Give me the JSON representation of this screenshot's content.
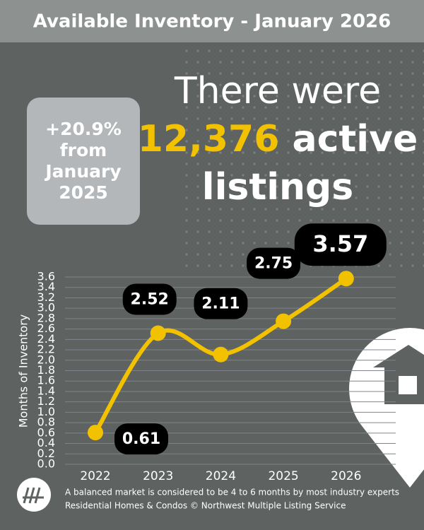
{
  "header": {
    "title": "Available Inventory - January 2026"
  },
  "badge": {
    "lines": [
      "+20.9%",
      "from",
      "January",
      "2025"
    ]
  },
  "headline": {
    "line1": "There were",
    "number": "12,376",
    "word": "active",
    "line3": "listings"
  },
  "footer": {
    "lines": [
      "A balanced market is considered to be 4 to 6 months by most industry experts",
      "Residential Homes & Condos © Northwest Multiple Listing Service"
    ]
  },
  "chart_data": {
    "type": "line",
    "y_label": "Months of Inventory",
    "categories": [
      "2022",
      "2023",
      "2024",
      "2025",
      "2026"
    ],
    "values": [
      0.61,
      2.52,
      2.11,
      2.75,
      3.57
    ],
    "color": "#f2c200",
    "ylim": [
      0,
      3.6
    ],
    "yticks": [
      {
        "value": 0,
        "label": "0.0"
      },
      0.2,
      0.4,
      0.6,
      0.8,
      {
        "value": 1,
        "label": "1.0"
      },
      1.2,
      1.4,
      1.6,
      1.8,
      {
        "value": 2,
        "label": "2.0"
      },
      2.2,
      2.4,
      2.6,
      2.8,
      {
        "value": 3,
        "label": "3.0"
      },
      3.2,
      3.4,
      3.6
    ],
    "grid": true
  }
}
